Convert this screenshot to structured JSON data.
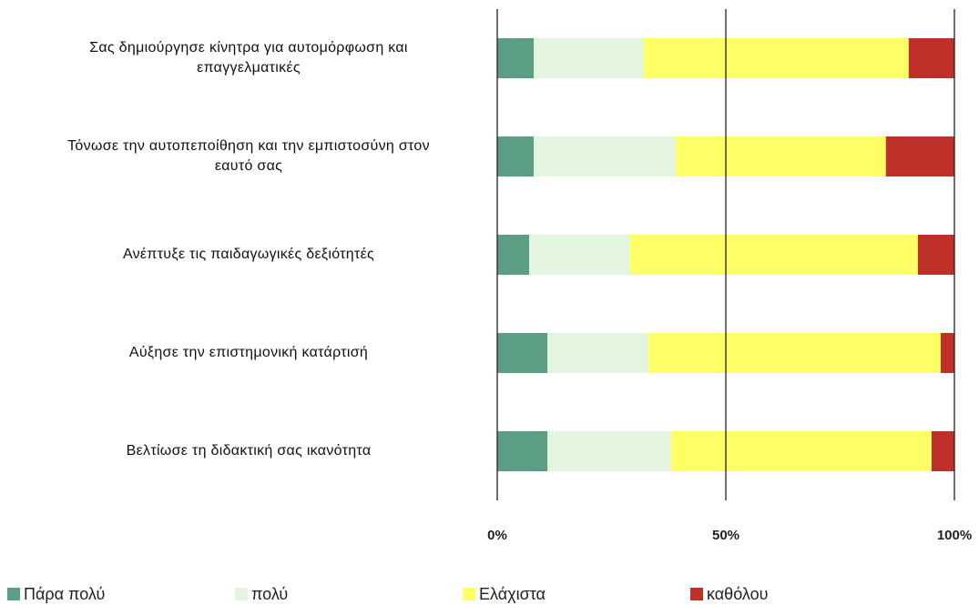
{
  "chart_data": {
    "type": "stacked-bar-horizontal",
    "categories": [
      "Σας δημιούργησε κίνητρα για αυτομόρφωση και\nεπαγγελματικές",
      "Τόνωσε την αυτοπεποίθηση και την εμπιστοσύνη στον\nεαυτό σας",
      "Ανέπτυξε τις παιδαγωγικές δεξιότητές",
      "Αύξησε την επιστημονική κατάρτισή",
      "Βελτίωσε τη διδακτική σας ικανότητα"
    ],
    "series": [
      {
        "name": "Πάρα πολύ",
        "color": "#5c9e84",
        "values": [
          8,
          8,
          7,
          11,
          11
        ]
      },
      {
        "name": "πολύ",
        "color": "#e3f5de",
        "values": [
          24,
          31,
          22,
          22,
          27
        ]
      },
      {
        "name": "Ελάχιστα",
        "color": "#ffff66",
        "values": [
          58,
          46,
          63,
          64,
          57
        ]
      },
      {
        "name": "καθόλου",
        "color": "#c0302a",
        "values": [
          10,
          15,
          8,
          3,
          5
        ]
      }
    ],
    "xlim": [
      0,
      100
    ],
    "xticks": [
      {
        "value": 0,
        "label": "0%"
      },
      {
        "value": 50,
        "label": "50%"
      },
      {
        "value": 100,
        "label": "100%"
      }
    ],
    "grid": true,
    "legend": "bottom"
  }
}
